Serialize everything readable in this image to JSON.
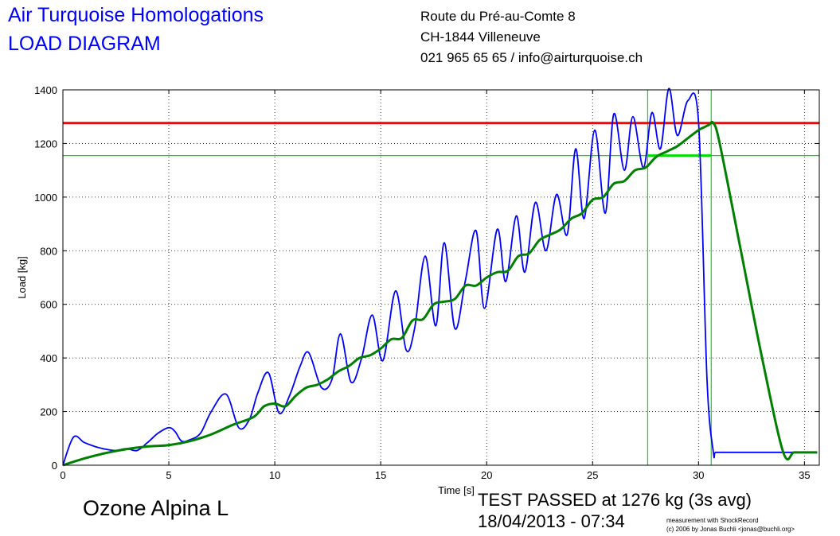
{
  "header": {
    "company_line1": "Air Turquoise Homologations",
    "company_line2": "LOAD DIAGRAM",
    "address_line1": "Route du Pré-au-Comte 8",
    "address_line2": "CH-1844 Villeneuve",
    "address_line3": "021 965 65 65 / info@airturquoise.ch"
  },
  "footer": {
    "model": "Ozone Alpina L",
    "result": "TEST PASSED at 1276 kg (3s avg)",
    "datetime": "18/04/2013 - 07:34",
    "credit_line1": "measurement with ShockRecord",
    "credit_line2": "(c) 2006 by Jonas Buchli <jonas@buchli.org>"
  },
  "chart_data": {
    "type": "line",
    "xlabel": "Time [s]",
    "ylabel": "Load [kg]",
    "xlim": [
      0,
      35.7
    ],
    "ylim": [
      0,
      1400
    ],
    "xticks": [
      0,
      5,
      10,
      15,
      20,
      25,
      30,
      35
    ],
    "yticks": [
      0,
      200,
      400,
      600,
      800,
      1000,
      1200,
      1400
    ],
    "grid": true,
    "colors": {
      "raw": "#0000ff",
      "avg": "#008000",
      "limit": "#ff0000",
      "marker": "#00e000"
    },
    "series": [
      {
        "key": "raw",
        "x": [
          0,
          0.5,
          1,
          1.5,
          2,
          2.5,
          3,
          3.5,
          4,
          4.5,
          5,
          5.3,
          5.6,
          6,
          6.5,
          7,
          7.7,
          8.3,
          8.8,
          9.2,
          9.7,
          10.2,
          10.7,
          11.2,
          11.6,
          12.2,
          12.7,
          13.1,
          13.6,
          14.1,
          14.6,
          15.1,
          15.7,
          16.2,
          16.6,
          17.1,
          17.6,
          18,
          18.5,
          19,
          19.5,
          19.9,
          20.5,
          20.9,
          21.4,
          21.8,
          22.3,
          22.8,
          23.3,
          23.8,
          24.2,
          24.6,
          25.1,
          25.6,
          26,
          26.5,
          26.9,
          27.4,
          27.8,
          28.2,
          28.6,
          29,
          29.5,
          30,
          30.4,
          30.7,
          30.8,
          31.2,
          31.5,
          32,
          33,
          34,
          35,
          35.6
        ],
        "y": [
          0,
          105,
          85,
          70,
          60,
          55,
          62,
          55,
          85,
          120,
          140,
          125,
          90,
          95,
          120,
          200,
          265,
          140,
          170,
          270,
          345,
          195,
          260,
          370,
          420,
          290,
          320,
          490,
          310,
          400,
          560,
          390,
          650,
          430,
          510,
          780,
          520,
          830,
          510,
          690,
          875,
          585,
          880,
          685,
          930,
          720,
          980,
          800,
          1010,
          860,
          1180,
          920,
          1250,
          940,
          1310,
          1100,
          1300,
          1110,
          1315,
          1180,
          1405,
          1230,
          1360,
          1280,
          320,
          48,
          48,
          48,
          48,
          48,
          48,
          48,
          48,
          48
        ]
      },
      {
        "key": "avg",
        "x": [
          0,
          1,
          2,
          3,
          4,
          5,
          6,
          7,
          8,
          9,
          9.5,
          10,
          10.5,
          11,
          11.5,
          12,
          12.5,
          13,
          13.5,
          14,
          14.5,
          15,
          15.5,
          16,
          16.5,
          17,
          17.5,
          18,
          18.5,
          19,
          19.5,
          20,
          20.5,
          21,
          21.5,
          22,
          22.5,
          23,
          23.5,
          24,
          24.5,
          25,
          25.5,
          26,
          26.5,
          27,
          27.5,
          28,
          28.5,
          29,
          29.5,
          30,
          30.3,
          30.5,
          30.7,
          31,
          32,
          33,
          34,
          34.5,
          35,
          35.6
        ],
        "y": [
          0,
          25,
          45,
          60,
          70,
          75,
          90,
          115,
          150,
          180,
          220,
          230,
          220,
          260,
          290,
          300,
          320,
          350,
          370,
          400,
          410,
          435,
          470,
          475,
          540,
          545,
          600,
          610,
          620,
          670,
          670,
          700,
          720,
          725,
          780,
          790,
          840,
          860,
          880,
          920,
          940,
          990,
          1000,
          1050,
          1060,
          1100,
          1110,
          1150,
          1170,
          1190,
          1220,
          1250,
          1262,
          1270,
          1276,
          1200,
          800,
          400,
          48,
          48,
          48,
          48
        ]
      }
    ],
    "hlines": [
      {
        "key": "limit",
        "y": 1276
      },
      {
        "key": "marker",
        "y": 1155
      }
    ],
    "vlines": [
      {
        "key": "marker",
        "x": 27.6
      },
      {
        "key": "marker",
        "x": 30.6
      }
    ],
    "avg_segment": {
      "x": [
        27.6,
        30.6
      ],
      "y": 1155
    }
  }
}
